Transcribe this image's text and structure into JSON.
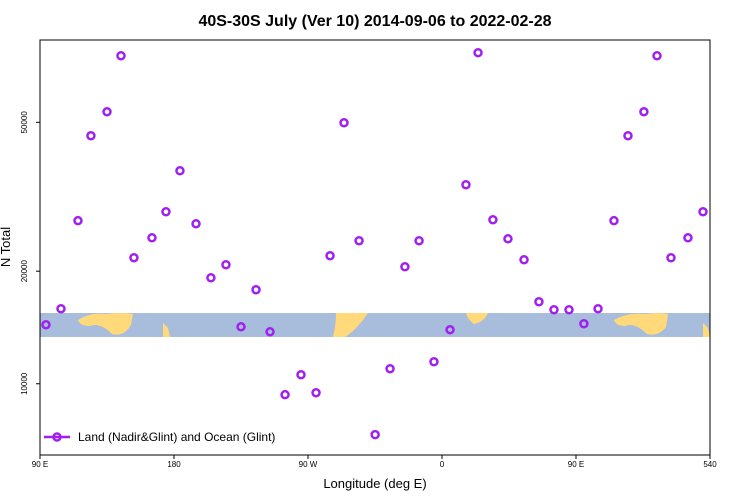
{
  "chart_data": {
    "type": "scatter",
    "title": "40S-30S July (Ver 10)   2014-09-06 to 2022-02-28",
    "x_label": "Longitude (deg E)",
    "y_label": "N Total",
    "log_y": true,
    "color": "#a020f0",
    "legend_position": "bottom-left",
    "xlim": [
      90,
      540
    ],
    "xticks": [
      {
        "value": 90,
        "label": "90 E"
      },
      180,
      {
        "value": 270,
        "label": "90 W"
      },
      {
        "value": 360,
        "label": "0"
      },
      {
        "value": 450,
        "label": "90 E"
      },
      540
    ],
    "ylim": [
      6450,
      83000
    ],
    "yticks": [
      10000,
      20000,
      50000
    ],
    "series": [
      {
        "name": "Land (Nadir&Glint) and Ocean (Glint)",
        "color": "#a020f0",
        "x": [
          94,
          104.1,
          115.5,
          124.2,
          135,
          144.4,
          153.1,
          165.2,
          174.6,
          184,
          194.8,
          204.8,
          214.9,
          225,
          235.1,
          244.5,
          254.6,
          265.3,
          275.4,
          284.8,
          294.2,
          304.3,
          315.1,
          325.1,
          335.1,
          344.6,
          354.6,
          365.4,
          376.1,
          384.2,
          394.2,
          404.3,
          415.1,
          425.1,
          435.2,
          445.3,
          455.3,
          464.8,
          475.5,
          484.9,
          495.6,
          504.4,
          513.8,
          525.2,
          535.3
        ],
        "values": [
          14380,
          15870,
          27290,
          46030,
          53350,
          75340,
          21720,
          24560,
          28830,
          37110,
          26770,
          19200,
          20810,
          14200,
          17840,
          13770,
          9350,
          10570,
          9460,
          21990,
          49870,
          24120,
          7310,
          10970,
          20550,
          24120,
          11450,
          13950,
          34050,
          76760,
          27450,
          24410,
          21460,
          16570,
          15770,
          15770,
          14470,
          15870,
          27290,
          46030,
          53350,
          75340,
          21720,
          24560,
          28830
        ]
      }
    ]
  }
}
